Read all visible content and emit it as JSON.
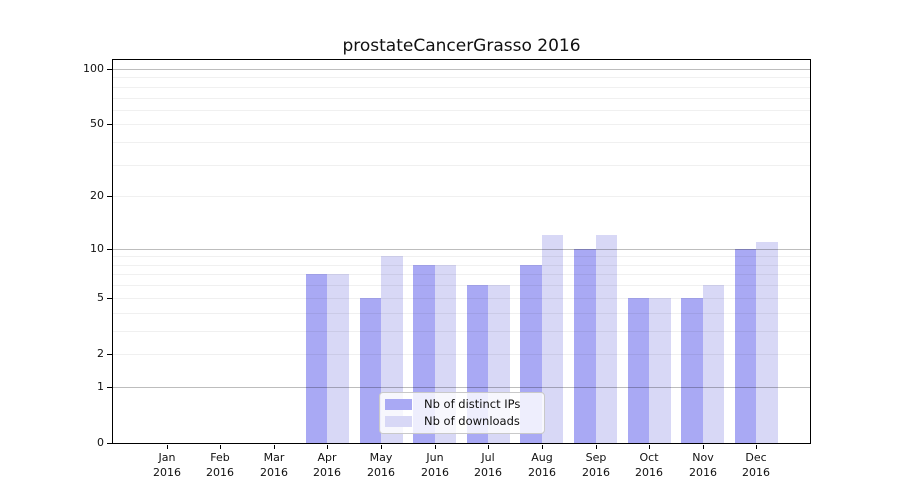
{
  "title": "prostateCancerGrasso 2016",
  "colors": {
    "distinct_ips_bar": "#a9a9f4",
    "downloads_bar": "#d8d8f6",
    "axis": "#000000",
    "grid_decade": "#bdbdbd",
    "grid_minor": "#efefef",
    "legend_border": "#c9c9c9",
    "text": "#111111"
  },
  "chart_data": {
    "type": "bar",
    "title": "prostateCancerGrasso 2016",
    "categories": [
      "Jan",
      "Feb",
      "Mar",
      "Apr",
      "May",
      "Jun",
      "Jul",
      "Aug",
      "Sep",
      "Oct",
      "Nov",
      "Dec"
    ],
    "category_year": "2016",
    "series": [
      {
        "name": "Nb of distinct IPs",
        "key": "distinct-ips",
        "color": "#a9a9f4",
        "values": [
          0,
          0,
          0,
          7,
          5,
          8,
          6,
          8,
          10,
          5,
          5,
          10
        ]
      },
      {
        "name": "Nb of downloads",
        "key": "downloads",
        "color": "#d8d8f6",
        "values": [
          0,
          0,
          0,
          7,
          9,
          8,
          6,
          12,
          12,
          5,
          6,
          11
        ]
      }
    ],
    "y_axis": {
      "scale": "log10(value+1)",
      "ticks": [
        0,
        1,
        2,
        5,
        10,
        20,
        50,
        100
      ],
      "minor_ticks": [
        3,
        4,
        6,
        7,
        8,
        9,
        30,
        40,
        60,
        70,
        80,
        90
      ],
      "decade_ticks": [
        1,
        10,
        100
      ],
      "ylim": [
        0,
        112
      ]
    },
    "x_axis": {
      "tick_label_line2": "2016"
    },
    "grid": true,
    "legend": {
      "position": "lower center",
      "items": [
        "Nb of distinct IPs",
        "Nb of downloads"
      ]
    }
  }
}
